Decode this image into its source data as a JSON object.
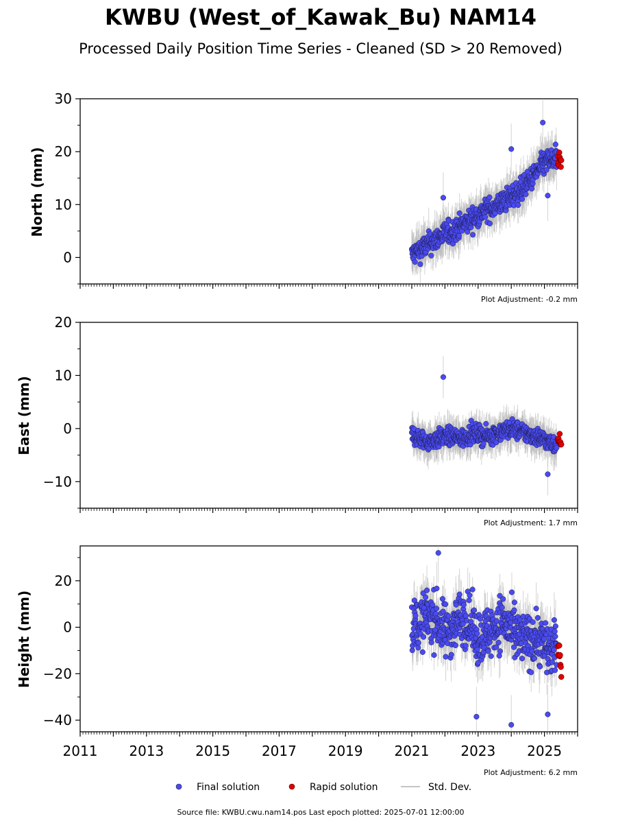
{
  "figure": {
    "title": "KWBU (West_of_Kawak_Bu) NAM14",
    "subtitle": "Processed Daily Position Time Series - Cleaned (SD > 20 Removed)",
    "footer": "Source file: KWBU.cwu.nam14.pos  Last epoch plotted: 2025-07-01 12:00:00"
  },
  "legend": {
    "final_label": "Final solution",
    "rapid_label": "Rapid solution",
    "std_label": "Std. Dev."
  },
  "colors": {
    "final": "#4a4af2",
    "rapid": "#e00000",
    "std": "#b0b0b0",
    "edge": "#1a1a40"
  },
  "chart_data": [
    {
      "type": "scatter",
      "ylabel": "North (mm)",
      "xlim": [
        2011,
        2026
      ],
      "ylim": [
        -5,
        30
      ],
      "yticks": [
        "30",
        "20",
        "10",
        "0"
      ],
      "adjustment": "Plot Adjustment: -0.2 mm",
      "series": [
        {
          "name": "Final solution",
          "x": [
            2021.0,
            2021.25,
            2021.5,
            2021.75,
            2022.0,
            2022.25,
            2022.5,
            2022.75,
            2023.0,
            2023.25,
            2023.5,
            2023.75,
            2024.0,
            2024.25,
            2024.5,
            2024.75,
            2025.0,
            2025.25
          ],
          "y": [
            0.5,
            1.5,
            2.5,
            3.5,
            4.5,
            5.0,
            6.0,
            7.0,
            8.0,
            9.0,
            9.5,
            10.5,
            11.5,
            12.5,
            14.0,
            16.0,
            18.0,
            18.5
          ]
        },
        {
          "name": "Rapid solution",
          "x": [
            2025.4,
            2025.45,
            2025.5
          ],
          "y": [
            18.0,
            18.5,
            17.5
          ]
        }
      ],
      "outliers": [
        {
          "x": 2021.95,
          "y": 11.3
        },
        {
          "x": 2024.0,
          "y": 20.5
        },
        {
          "x": 2024.95,
          "y": 25.5
        },
        {
          "x": 2025.1,
          "y": 11.7
        }
      ]
    },
    {
      "type": "scatter",
      "ylabel": "East (mm)",
      "xlim": [
        2011,
        2026
      ],
      "ylim": [
        -15,
        20
      ],
      "yticks": [
        "20",
        "10",
        "0",
        "−10"
      ],
      "adjustment": "Plot Adjustment: 1.7 mm",
      "series": [
        {
          "name": "Final solution",
          "x": [
            2021.0,
            2021.25,
            2021.5,
            2021.75,
            2022.0,
            2022.25,
            2022.5,
            2022.75,
            2023.0,
            2023.25,
            2023.5,
            2023.75,
            2024.0,
            2024.25,
            2024.5,
            2024.75,
            2025.0,
            2025.25
          ],
          "y": [
            -1.0,
            -2.0,
            -2.5,
            -2.0,
            -1.5,
            -1.5,
            -2.0,
            -1.0,
            -1.0,
            -1.5,
            -1.0,
            -0.5,
            0.0,
            -0.5,
            -1.0,
            -1.5,
            -2.0,
            -3.0
          ]
        },
        {
          "name": "Rapid solution",
          "x": [
            2025.4,
            2025.45,
            2025.5
          ],
          "y": [
            -1.5,
            -2.0,
            -2.5
          ]
        }
      ],
      "outliers": [
        {
          "x": 2021.95,
          "y": 9.7
        },
        {
          "x": 2025.1,
          "y": -8.6
        }
      ]
    },
    {
      "type": "scatter",
      "ylabel": "Height (mm)",
      "xlim": [
        2011,
        2026
      ],
      "ylim": [
        -45,
        35
      ],
      "yticks": [
        "20",
        "0",
        "−20",
        "−40"
      ],
      "xticks": [
        "2011",
        "2013",
        "2015",
        "2017",
        "2019",
        "2021",
        "2023",
        "2025"
      ],
      "adjustment": "Plot Adjustment: 6.2 mm",
      "series": [
        {
          "name": "Final solution",
          "x": [
            2021.0,
            2021.25,
            2021.5,
            2021.75,
            2022.0,
            2022.25,
            2022.5,
            2022.75,
            2023.0,
            2023.25,
            2023.5,
            2023.75,
            2024.0,
            2024.25,
            2024.5,
            2024.75,
            2025.0,
            2025.25
          ],
          "y": [
            0.0,
            2.0,
            5.0,
            3.0,
            -2.0,
            0.0,
            5.0,
            2.0,
            -5.0,
            -3.0,
            0.0,
            3.0,
            -2.0,
            -5.0,
            -6.0,
            -4.0,
            -8.0,
            -10.0
          ]
        },
        {
          "name": "Rapid solution",
          "x": [
            2025.4,
            2025.45,
            2025.5
          ],
          "y": [
            -5.0,
            -10.0,
            -15.0
          ]
        }
      ],
      "outliers": [
        {
          "x": 2021.8,
          "y": 32.0
        },
        {
          "x": 2022.95,
          "y": -38.5
        },
        {
          "x": 2024.0,
          "y": -42.0
        },
        {
          "x": 2025.1,
          "y": -37.5
        }
      ]
    }
  ]
}
